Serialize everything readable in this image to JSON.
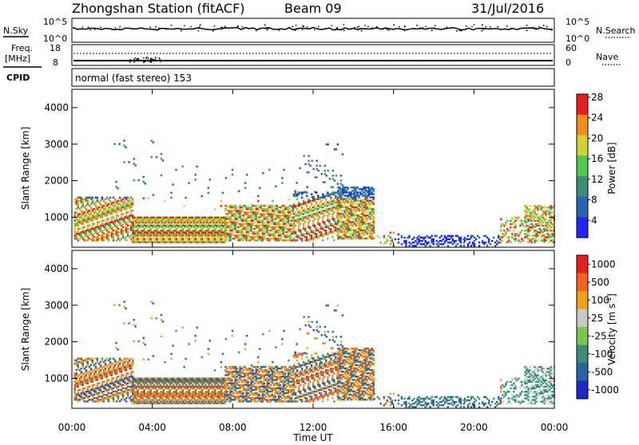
{
  "header": {
    "station": "Zhongshan Station (fitACF)",
    "beam": "Beam 09",
    "date": "31/Jul/2016"
  },
  "panels": {
    "nsky_label": "N.Sky",
    "nsky_ticks": [
      "10^5",
      "10^0"
    ],
    "nsearch_label": "N.Search",
    "nsearch_ticks": [
      "10^5",
      "10^0"
    ],
    "freq_label_1": "Freq.",
    "freq_label_2": "[MHz]",
    "freq_ticks": [
      "18",
      "8"
    ],
    "nave_label": "Nave",
    "nave_ticks": [
      "60",
      "0"
    ],
    "cpid_label": "CPID",
    "cpid_text": "normal (fast stereo) 153"
  },
  "chart_data": [
    {
      "type": "heatmap",
      "name": "power",
      "ylabel": "Slant Range [km]",
      "yticks": [
        "1000",
        "2000",
        "3000",
        "4000"
      ],
      "ytick_values": [
        1000,
        2000,
        3000,
        4000
      ],
      "ylim": [
        180,
        4500
      ],
      "colorbar_label": "Power [dB]",
      "colorbar_ticks": [
        "4",
        "8",
        "12",
        "16",
        "20",
        "24",
        "28"
      ],
      "colorbar_colors": [
        "#1e28f0",
        "#2864b4",
        "#3c8c78",
        "#50c850",
        "#d2d232",
        "#f08c1e",
        "#e61e1e"
      ]
    },
    {
      "type": "heatmap",
      "name": "velocity",
      "ylabel": "Slant Range [km]",
      "yticks": [
        "1000",
        "2000",
        "3000",
        "4000"
      ],
      "ytick_values": [
        1000,
        2000,
        3000,
        4000
      ],
      "ylim": [
        180,
        4500
      ],
      "colorbar_label": "Velocity [m s^-1]",
      "colorbar_ticks": [
        "1000",
        "500",
        "100",
        "25",
        "-25",
        "-100",
        "-500",
        "-1000"
      ],
      "colorbar_colors": [
        "#1e28c8",
        "#2864a0",
        "#3c8c78",
        "#78c850",
        "#c8c8c8",
        "#f0a01e",
        "#f0641e",
        "#e61e1e"
      ]
    }
  ],
  "xaxis": {
    "ticks": [
      "00:00",
      "04:00",
      "08:00",
      "12:00",
      "16:00",
      "20:00",
      "00:00"
    ],
    "tick_hours": [
      0,
      4,
      8,
      12,
      16,
      20,
      24
    ],
    "label": "Time UT"
  }
}
